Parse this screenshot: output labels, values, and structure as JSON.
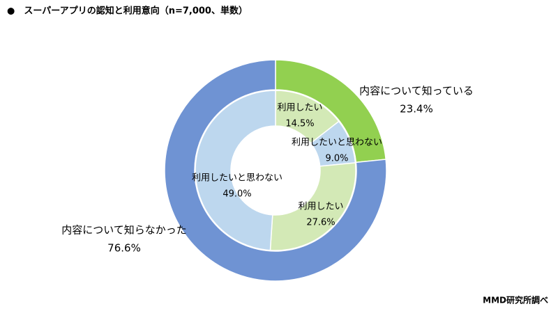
{
  "chart_data": {
    "type": "nested-donut",
    "title": "●　スーパーアプリの認知と利用意向（n=7,000、単数）",
    "source": "MMD研究所調べ",
    "rings": [
      {
        "categories": [
          "内容について知っている",
          "内容について知らなかった"
        ],
        "values": [
          23.4,
          76.6
        ],
        "value_labels": [
          "23.4%",
          "76.6%"
        ],
        "colors": [
          "#92d050",
          "#6f93d3"
        ]
      },
      {
        "categories": [
          "利用したい",
          "利用したいと思わない",
          "利用したい",
          "利用したいと思わない"
        ],
        "values": [
          14.5,
          9.0,
          27.6,
          49.0
        ],
        "value_labels": [
          "14.5%",
          "9.0%",
          "27.6%",
          "49.0%"
        ],
        "colors": [
          "#d3e9b6",
          "#bdd7ee",
          "#d3e9b6",
          "#bdd7ee"
        ]
      }
    ]
  }
}
